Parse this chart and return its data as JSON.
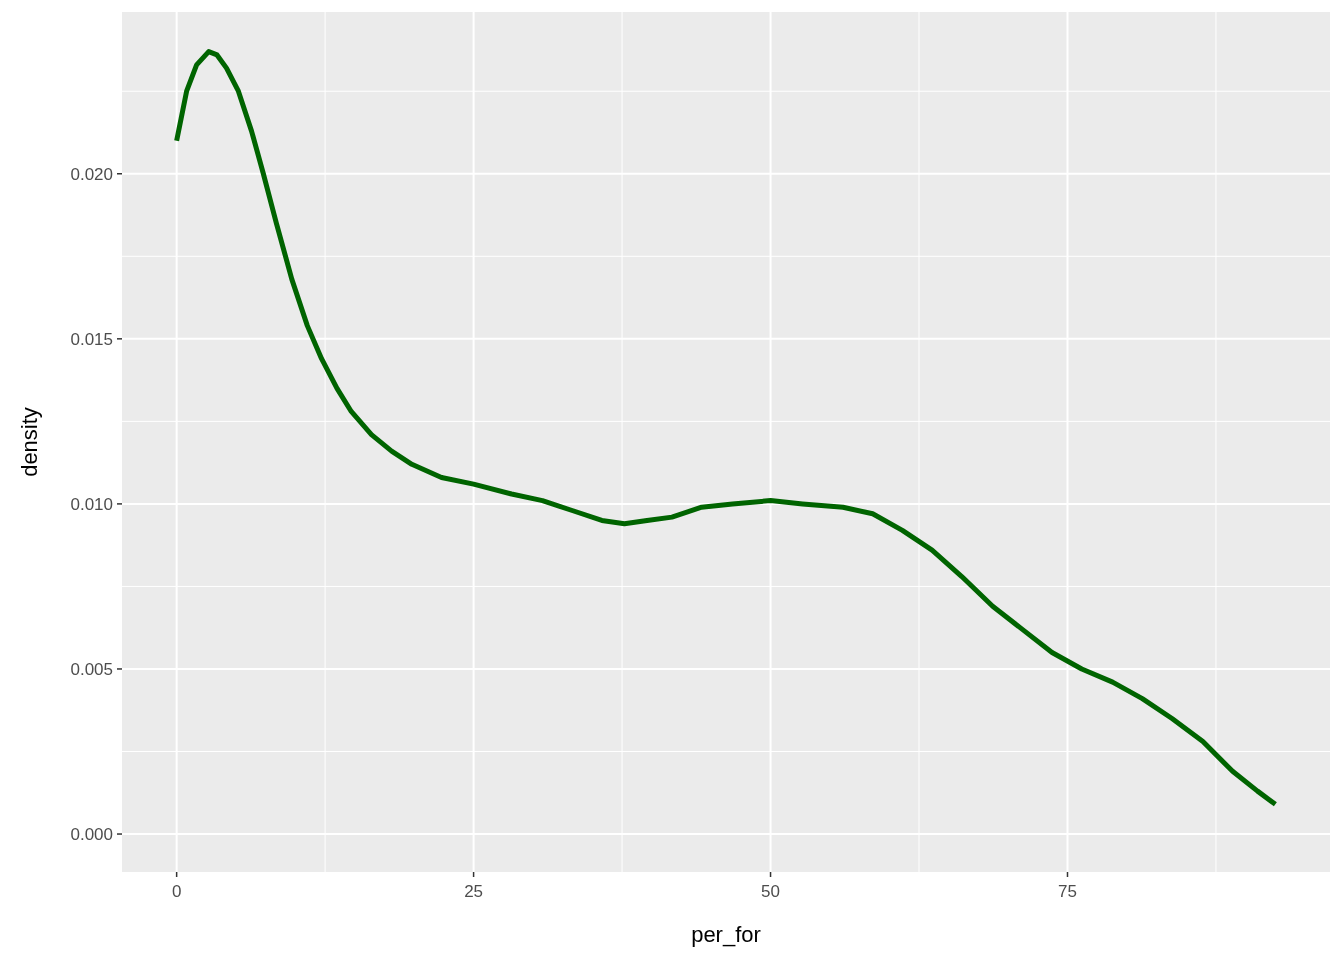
{
  "chart_data": {
    "type": "line",
    "xlabel": "per_for",
    "ylabel": "density",
    "xlim": [
      -4.6,
      97.1
    ],
    "ylim": [
      -0.00115,
      0.0249
    ],
    "xticks": [
      0,
      {
        "value": 12.5,
        "label": null
      },
      25,
      {
        "value": 37.5,
        "label": null
      },
      50,
      {
        "value": 62.5,
        "label": null
      },
      75,
      {
        "value": 87.5,
        "label": null
      }
    ],
    "yticks": [
      "0.000",
      {
        "value": 0.0025,
        "label": null
      },
      {
        "value": 0.005,
        "label": "0.005"
      },
      {
        "value": 0.0075,
        "label": null
      },
      {
        "value": 0.01,
        "label": "0.010"
      },
      {
        "value": 0.0125,
        "label": null
      },
      {
        "value": 0.015,
        "label": "0.015"
      },
      {
        "value": 0.0175,
        "label": null
      },
      {
        "value": 0.02,
        "label": "0.020"
      },
      {
        "value": 0.0225,
        "label": null
      }
    ],
    "grid": true,
    "marker": "none",
    "line_style": "solid",
    "series": [
      {
        "color": "#006400",
        "x": [
          0,
          0.84,
          1.68,
          2.7,
          3.4,
          4.2,
          5.2,
          6.3,
          7.3,
          8.4,
          9.7,
          11,
          12.2,
          13.5,
          14.7,
          16.4,
          18.1,
          19.8,
          22.3,
          25,
          28.2,
          30.8,
          33.3,
          35.8,
          37.7,
          39.6,
          41.7,
          44.2,
          46.8,
          50,
          52.7,
          56.1,
          58.6,
          61.1,
          63.6,
          66.1,
          68.7,
          71.2,
          73.7,
          76.2,
          78.8,
          81.3,
          83.8,
          86.4,
          88.9,
          91,
          92.5
        ],
        "values": [
          0.021,
          0.0225,
          0.0233,
          0.0237,
          0.0236,
          0.0232,
          0.0225,
          0.0213,
          0.02,
          0.0185,
          0.0168,
          0.0154,
          0.0144,
          0.0135,
          0.0128,
          0.0121,
          0.0116,
          0.0112,
          0.0108,
          0.0106,
          0.0103,
          0.0101,
          0.0098,
          0.0095,
          0.0094,
          0.0095,
          0.0096,
          0.0099,
          0.01,
          0.0101,
          0.01,
          0.0099,
          0.0097,
          0.0092,
          0.0086,
          0.0078,
          0.0069,
          0.0062,
          0.0055,
          0.005,
          0.0046,
          0.0041,
          0.0035,
          0.0028,
          0.0019,
          0.0013,
          0.0009
        ]
      }
    ]
  }
}
